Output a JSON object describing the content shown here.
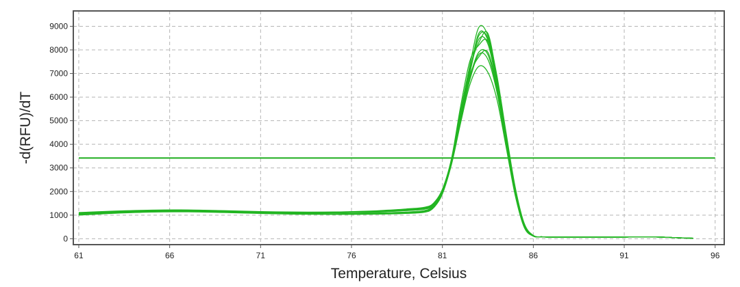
{
  "chart_data": {
    "type": "line",
    "title": "",
    "xlabel": "Temperature, Celsius",
    "ylabel": "-d(RFU)/dT",
    "xlim": [
      60.7,
      96.5
    ],
    "ylim": [
      -250,
      9650
    ],
    "xticks": [
      61,
      66,
      71,
      76,
      81,
      86,
      91,
      96
    ],
    "yticks": [
      0,
      1000,
      2000,
      3000,
      4000,
      5000,
      6000,
      7000,
      8000,
      9000
    ],
    "grid": true,
    "legend": "none",
    "colors": {
      "series": "#22b522",
      "threshold": "#1fae1f",
      "grid": "#b4b4b4",
      "frame": "#555555"
    },
    "threshold": {
      "value": 3420,
      "x_start": 61,
      "x_end": 96
    },
    "x": [
      61,
      63,
      65,
      67,
      69,
      71,
      73,
      75,
      77,
      78,
      79,
      80,
      80.5,
      81,
      81.5,
      82,
      82.5,
      83,
      83.5,
      84,
      84.5,
      85,
      85.5,
      86,
      86.5,
      87,
      89,
      91,
      92,
      93,
      94,
      94.8
    ],
    "series": [
      {
        "values": [
          1000,
          1080,
          1130,
          1140,
          1110,
          1070,
          1040,
          1030,
          1040,
          1050,
          1070,
          1120,
          1300,
          1900,
          3200,
          5200,
          7000,
          8700,
          8400,
          6600,
          4300,
          2100,
          600,
          130,
          80,
          70,
          70,
          70,
          80,
          70,
          40,
          20
        ]
      },
      {
        "values": [
          1020,
          1100,
          1150,
          1160,
          1130,
          1090,
          1060,
          1050,
          1060,
          1080,
          1100,
          1160,
          1350,
          1950,
          3300,
          5400,
          7300,
          8950,
          8600,
          6900,
          4500,
          2200,
          650,
          140,
          80,
          70,
          70,
          70,
          80,
          70,
          40,
          20
        ]
      },
      {
        "values": [
          1050,
          1120,
          1170,
          1180,
          1150,
          1110,
          1090,
          1100,
          1130,
          1160,
          1200,
          1270,
          1450,
          2050,
          3300,
          5200,
          7000,
          8450,
          8250,
          6500,
          4200,
          2000,
          550,
          120,
          80,
          70,
          70,
          70,
          80,
          70,
          40,
          20
        ]
      },
      {
        "values": [
          1070,
          1140,
          1190,
          1200,
          1170,
          1130,
          1120,
          1130,
          1170,
          1210,
          1260,
          1330,
          1500,
          2100,
          3400,
          5600,
          7500,
          8200,
          8350,
          6700,
          4300,
          2100,
          600,
          130,
          80,
          70,
          70,
          70,
          80,
          70,
          40,
          20
        ]
      },
      {
        "values": [
          1090,
          1160,
          1200,
          1210,
          1180,
          1140,
          1120,
          1120,
          1150,
          1180,
          1220,
          1280,
          1450,
          2000,
          3200,
          5000,
          6700,
          7800,
          7600,
          6200,
          4000,
          1900,
          500,
          110,
          80,
          70,
          70,
          70,
          80,
          70,
          40,
          20
        ]
      },
      {
        "values": [
          1110,
          1170,
          1210,
          1220,
          1190,
          1150,
          1130,
          1130,
          1160,
          1190,
          1230,
          1300,
          1480,
          2050,
          3300,
          5200,
          6900,
          7700,
          7900,
          6400,
          4100,
          2000,
          520,
          120,
          80,
          70,
          70,
          70,
          80,
          70,
          40,
          20
        ]
      },
      {
        "values": [
          1060,
          1130,
          1180,
          1190,
          1160,
          1120,
          1100,
          1100,
          1120,
          1150,
          1190,
          1250,
          1400,
          1950,
          3150,
          4900,
          6500,
          7300,
          7050,
          5900,
          3900,
          1850,
          480,
          110,
          80,
          70,
          70,
          70,
          80,
          70,
          40,
          20
        ]
      },
      {
        "values": [
          1040,
          1110,
          1160,
          1170,
          1140,
          1100,
          1070,
          1060,
          1080,
          1100,
          1130,
          1190,
          1380,
          1980,
          3300,
          5400,
          7200,
          8300,
          8700,
          6800,
          4400,
          2150,
          620,
          130,
          80,
          70,
          70,
          70,
          80,
          70,
          40,
          20
        ]
      },
      {
        "values": [
          1080,
          1150,
          1190,
          1200,
          1170,
          1130,
          1110,
          1110,
          1140,
          1170,
          1210,
          1270,
          1430,
          2000,
          3200,
          5100,
          6800,
          7900,
          7800,
          6300,
          4000,
          1950,
          520,
          110,
          80,
          70,
          70,
          70,
          80,
          70,
          40,
          20
        ]
      },
      {
        "values": [
          1030,
          1090,
          1140,
          1150,
          1120,
          1080,
          1050,
          1040,
          1050,
          1070,
          1090,
          1140,
          1320,
          1920,
          3250,
          5300,
          7100,
          8600,
          8500,
          6700,
          4350,
          2120,
          610,
          130,
          80,
          70,
          70,
          70,
          80,
          70,
          40,
          20
        ]
      }
    ]
  }
}
